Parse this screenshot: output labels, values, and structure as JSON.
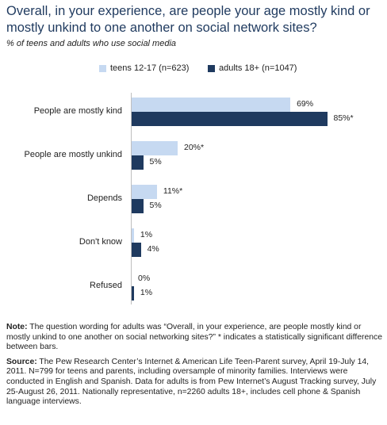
{
  "header": {
    "title": "Overall, in your experience, are people your age mostly kind or mostly unkind to one another on social network sites?",
    "subtitle": "% of teens and adults who use social media"
  },
  "colors": {
    "teens": "#c6d9f1",
    "adults": "#1f3a5f",
    "axis": "#bfbfbf"
  },
  "chart_data": {
    "type": "bar",
    "orientation": "horizontal",
    "categories": [
      "People are mostly kind",
      "People are mostly unkind",
      "Depends",
      "Don't know",
      "Refused"
    ],
    "series": [
      {
        "name": "teens 12-17 (n=623)",
        "values": [
          69,
          20,
          11,
          1,
          0
        ],
        "labels": [
          "69%",
          "20%*",
          "11%*",
          "1%",
          "0%"
        ]
      },
      {
        "name": "adults 18+ (n=1047)",
        "values": [
          85,
          5,
          5,
          4,
          1
        ],
        "labels": [
          "85%*",
          "5%",
          "5%",
          "4%",
          "1%"
        ]
      }
    ],
    "legend_position": "top"
  },
  "notes": {
    "note_label": "Note:",
    "note_text": " The question wording for adults was “Overall, in your experience, are people mostly kind or mostly unkind to one another on social networking sites?” * indicates a statistically significant difference between bars.",
    "source_label": "Source:",
    "source_text": " The Pew Research Center’s Internet & American Life Teen-Parent survey, April 19-July 14, 2011. N=799 for teens and parents, including oversample of minority families. Interviews were conducted in English and Spanish. Data for adults is from Pew Internet’s August Tracking survey, July 25-August 26, 2011. Nationally representative, n=2260 adults 18+, includes cell phone & Spanish language interviews."
  }
}
